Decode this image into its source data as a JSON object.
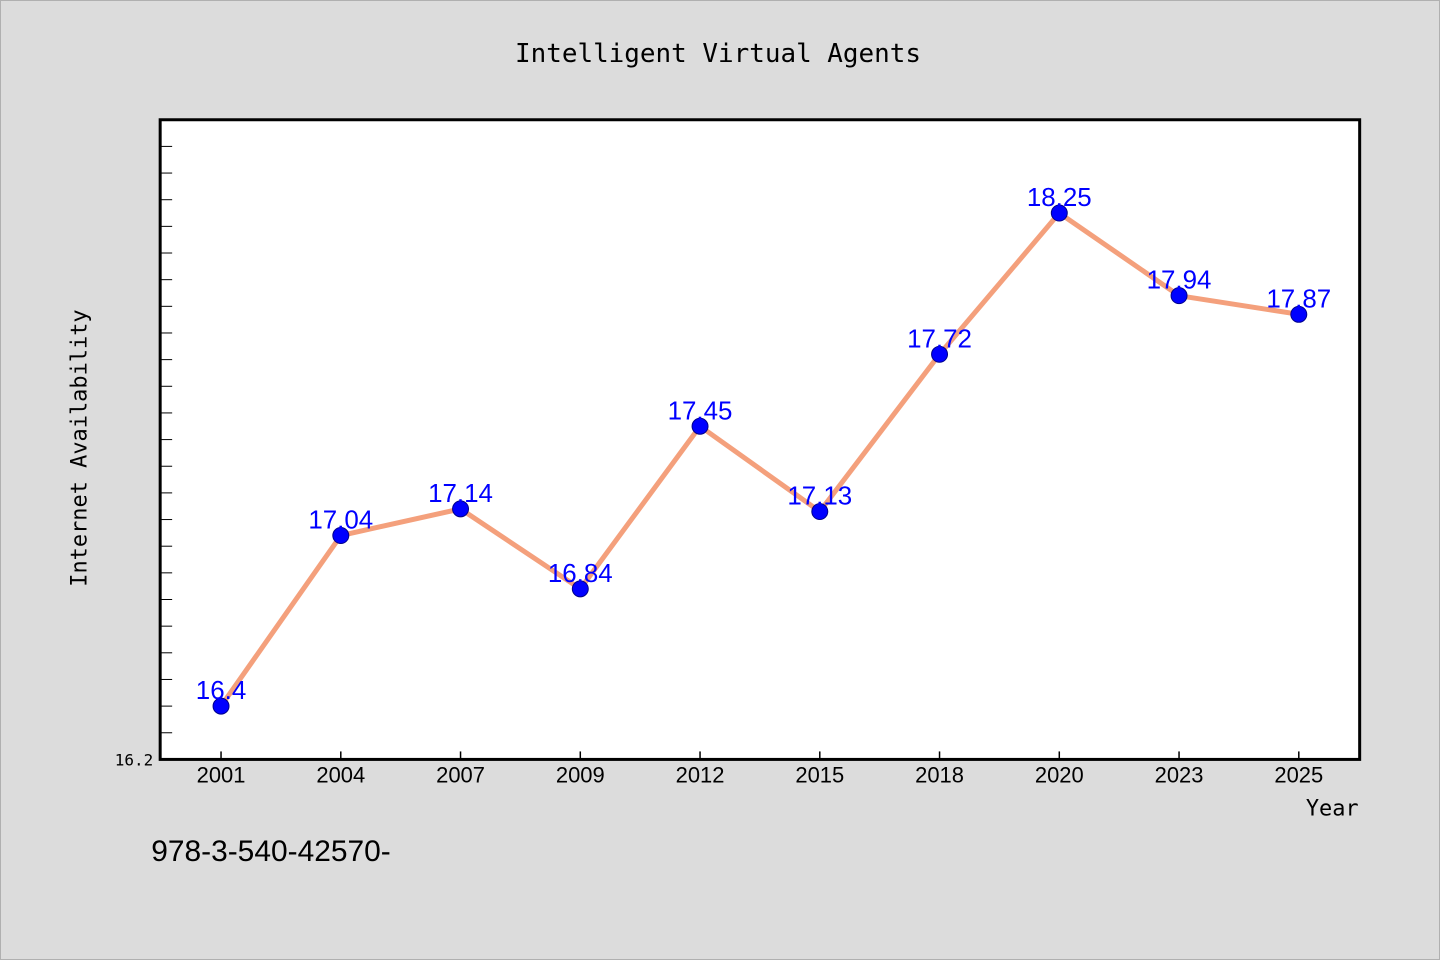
{
  "chart_data": {
    "type": "line",
    "title": "Intelligent Virtual Agents",
    "xlabel": "Year",
    "ylabel": "Internet Availability",
    "categories": [
      "2001",
      "2004",
      "2007",
      "2009",
      "2012",
      "2015",
      "2018",
      "2020",
      "2023",
      "2025"
    ],
    "values": [
      16.4,
      17.04,
      17.14,
      16.84,
      17.45,
      17.13,
      17.72,
      18.25,
      17.94,
      17.87
    ],
    "data_labels": [
      "16.4",
      "17.04",
      "17.14",
      "16.84",
      "17.45",
      "17.13",
      "17.72",
      "18.25",
      "17.94",
      "17.87"
    ],
    "ylim": [
      16.2,
      18.6
    ],
    "y_tick_label": "16.2",
    "grid": false,
    "line_color": "#f4a07c",
    "marker_color": "#0000ff",
    "label_color": "#0000ff"
  },
  "footer": {
    "text": "978-3-540-42570-"
  }
}
